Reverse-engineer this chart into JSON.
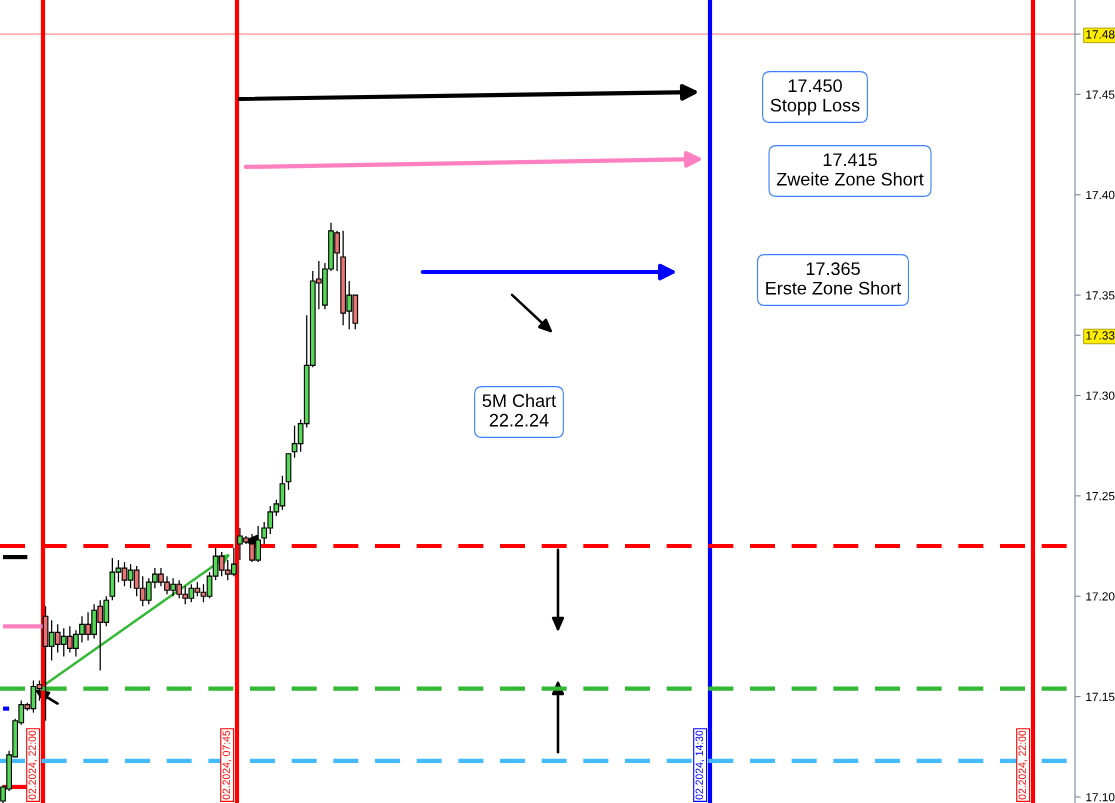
{
  "chart_data": {
    "type": "candlestick",
    "categories": [
      null,
      null,
      null,
      null,
      null,
      null,
      null,
      null,
      null,
      null,
      null,
      null,
      null,
      null,
      null,
      null,
      null,
      null,
      null,
      null,
      null,
      null,
      null,
      null,
      null,
      null,
      null,
      null,
      null,
      null,
      null,
      null,
      null,
      null,
      null,
      null,
      null,
      null,
      null,
      null,
      null,
      null,
      null,
      null,
      null,
      null,
      null,
      null,
      null,
      null,
      null,
      null,
      null,
      null,
      null,
      null,
      null,
      null,
      null,
      null,
      null,
      null,
      null,
      null,
      null,
      null,
      null,
      null,
      null,
      null,
      null,
      null,
      null,
      null,
      null,
      null,
      null,
      null,
      null,
      null,
      null,
      null,
      null,
      null,
      null,
      null,
      null,
      null,
      null,
      null,
      null,
      null,
      null,
      null,
      null,
      null,
      null,
      null,
      null,
      null,
      null,
      null,
      null,
      null,
      null,
      null,
      null,
      null,
      null,
      null,
      null,
      null,
      null,
      null,
      null,
      null,
      null,
      null,
      null,
      null,
      null,
      null,
      null,
      null,
      null,
      null,
      null,
      null,
      null,
      null,
      null,
      null,
      null,
      null,
      null,
      null,
      null,
      null,
      null,
      null,
      null,
      null,
      null,
      null,
      null,
      null,
      null,
      null,
      null,
      null,
      null,
      null,
      null,
      null,
      null,
      null,
      null,
      null,
      null,
      null,
      null,
      null,
      null,
      null,
      null,
      null,
      null,
      null,
      null,
      null,
      null,
      null,
      null,
      null,
      null,
      null,
      null
    ],
    "series": [
      {
        "type": "line",
        "color": "#000000",
        "values": [
          17.2195,
          17.2195,
          17.2195,
          17.2195,
          17.2195,
          null,
          null,
          null,
          null,
          null,
          null,
          null,
          null,
          null,
          null,
          null,
          null,
          null,
          null,
          null,
          null,
          null,
          null,
          null,
          null,
          null,
          null,
          null,
          null,
          null,
          null,
          null,
          null,
          null,
          null,
          null,
          null,
          null,
          null,
          null,
          null,
          null,
          null,
          null,
          null,
          null,
          null,
          null,
          null,
          null,
          null,
          null,
          null,
          null,
          null,
          null,
          null,
          null,
          null,
          null,
          null,
          null,
          null,
          null,
          null,
          null,
          null,
          null,
          null,
          null,
          null,
          null,
          null,
          null,
          null,
          null,
          null,
          null,
          null,
          null,
          null,
          null,
          null,
          null,
          null,
          null,
          null,
          null,
          null,
          null,
          null,
          null,
          null,
          null,
          null,
          null,
          null,
          null,
          null,
          null,
          null,
          null,
          null,
          null,
          null,
          null,
          null,
          null,
          null,
          null,
          null,
          null,
          null,
          null,
          null,
          null,
          null,
          null,
          null,
          null,
          null,
          null,
          null,
          null,
          null,
          null,
          null,
          null,
          null,
          null,
          null,
          null,
          null,
          null,
          null,
          null,
          null,
          null,
          null,
          null,
          null,
          null,
          null,
          null,
          null,
          null,
          null,
          null,
          null,
          null,
          null,
          null,
          null,
          null,
          null,
          null,
          null,
          null,
          null,
          null,
          null,
          null,
          null,
          null,
          null,
          null,
          null,
          null,
          null,
          null,
          null,
          null,
          null,
          null,
          null,
          null,
          null
        ]
      },
      {
        "type": "line",
        "color": "#ff80c0",
        "values": [
          17.185,
          17.185,
          17.185,
          17.185,
          17.185,
          17.185,
          17.185,
          17.185,
          null,
          null,
          null,
          null,
          null,
          null,
          null,
          null,
          null,
          null,
          null,
          null,
          null,
          null,
          null,
          null,
          null,
          null,
          null,
          null,
          null,
          null,
          null,
          null,
          null,
          null,
          null,
          null,
          null,
          null,
          null,
          null,
          null,
          null,
          null,
          null,
          null,
          null,
          null,
          null,
          null,
          null,
          null,
          null,
          null,
          null,
          null,
          null,
          null,
          null,
          null,
          null,
          null,
          null,
          null,
          null,
          null,
          null,
          null,
          null,
          null,
          null,
          null,
          null,
          null,
          null,
          null,
          null,
          null,
          null,
          null,
          null,
          null,
          null,
          null,
          null,
          null,
          null,
          null,
          null,
          null,
          null,
          null,
          null,
          null,
          null,
          null,
          null,
          null,
          null,
          null,
          null,
          null,
          null,
          null,
          null,
          null,
          null,
          null,
          null,
          null,
          null,
          null,
          null,
          null,
          null,
          null,
          null,
          null,
          null,
          null,
          null,
          null,
          null,
          null,
          null,
          null,
          null,
          null,
          null,
          null,
          null,
          null,
          null,
          null,
          null,
          null,
          null,
          null,
          null,
          null,
          null,
          null,
          null,
          null,
          null,
          null,
          null,
          null,
          null,
          null,
          null,
          null,
          null,
          null,
          null,
          null,
          null,
          null,
          null,
          null,
          null,
          null,
          null,
          null,
          null,
          null,
          null,
          null,
          null,
          null,
          null,
          null,
          null,
          null,
          null,
          null,
          null,
          null
        ]
      },
      {
        "type": "line",
        "color": "#0000ff",
        "values": [
          17.144,
          17.144,
          null,
          null,
          null,
          null,
          null,
          null,
          null,
          null,
          null,
          null,
          null,
          null,
          null,
          null,
          null,
          null,
          null,
          null,
          null,
          null,
          null,
          null,
          null,
          null,
          null,
          null,
          null,
          null,
          null,
          null,
          null,
          null,
          null,
          null,
          null,
          null,
          null,
          null,
          null,
          null,
          null,
          null,
          null,
          null,
          null,
          null,
          null,
          null,
          null,
          null,
          null,
          null,
          null,
          null,
          null,
          null,
          null,
          null,
          null,
          null,
          null,
          null,
          null,
          null,
          null,
          null,
          null,
          null,
          null,
          null,
          null,
          null,
          null,
          null,
          null,
          null,
          null,
          null,
          null,
          null,
          null,
          null,
          null,
          null,
          null,
          null,
          null,
          null,
          null,
          null,
          null,
          null,
          null,
          null,
          null,
          null,
          null,
          null,
          null,
          null,
          null,
          null,
          null,
          null,
          null,
          null,
          null,
          null,
          null,
          null,
          null,
          null,
          null,
          null,
          null,
          null,
          null,
          null,
          null,
          null,
          null,
          null,
          null,
          null,
          null,
          null,
          null,
          null,
          null,
          null,
          null,
          null,
          null,
          null,
          null,
          null,
          null,
          null,
          null,
          null,
          null,
          null,
          null,
          null,
          null,
          null,
          null,
          null,
          null,
          null,
          null,
          null,
          null,
          null,
          null,
          null,
          null,
          null,
          null,
          null,
          null,
          null,
          null,
          null,
          null,
          null,
          null,
          null,
          null,
          null,
          null,
          null,
          null,
          null,
          null
        ]
      },
      {
        "type": "line",
        "color": "#ff0000",
        "values": [
          17.105,
          17.105,
          17.105,
          17.105,
          17.105,
          null,
          null,
          null,
          null,
          null,
          null,
          null,
          null,
          null,
          null,
          null,
          null,
          null,
          null,
          null,
          null,
          null,
          null,
          null,
          null,
          null,
          null,
          null,
          null,
          null,
          null,
          null,
          null,
          null,
          null,
          null,
          null,
          null,
          null,
          null,
          null,
          null,
          null,
          null,
          null,
          null,
          null,
          null,
          null,
          null,
          null,
          null,
          null,
          null,
          null,
          null,
          null,
          null,
          null,
          null,
          null,
          null,
          null,
          null,
          null,
          null,
          null,
          null,
          null,
          null,
          null,
          null,
          null,
          null,
          null,
          null,
          null,
          null,
          null,
          null,
          null,
          null,
          null,
          null,
          null,
          null,
          null,
          null,
          null,
          null,
          null,
          null,
          null,
          null,
          null,
          null,
          null,
          null,
          null,
          null,
          null,
          null,
          null,
          null,
          null,
          null,
          null,
          null,
          null,
          null,
          null,
          null,
          null,
          null,
          null,
          null,
          null,
          null,
          null,
          null,
          null,
          null,
          null,
          null,
          null,
          null,
          null,
          null,
          null,
          null,
          null,
          null,
          null,
          null,
          null,
          null,
          null,
          null,
          null,
          null,
          null,
          null,
          null,
          null,
          null,
          null,
          null,
          null,
          null,
          null,
          null,
          null,
          null,
          null,
          null,
          null,
          null,
          null,
          null,
          null,
          null,
          null,
          null,
          null,
          null,
          null,
          null,
          null,
          null,
          null,
          null,
          null,
          null,
          null,
          null,
          null,
          null
        ]
      }
    ],
    "ohlc": [
      [
        17.098,
        17.106,
        17.097,
        17.105
      ],
      [
        17.104,
        17.123,
        17.103,
        17.121
      ],
      [
        17.12,
        17.139,
        17.12,
        17.138
      ],
      [
        17.137,
        17.148,
        17.136,
        17.146
      ],
      [
        17.146,
        17.147,
        17.143,
        17.144
      ],
      [
        17.144,
        17.158,
        17.142,
        17.155
      ],
      [
        17.156,
        17.158,
        17.148,
        17.154
      ],
      [
        17.19,
        17.195,
        17.138,
        17.175
      ],
      [
        17.175,
        17.188,
        17.168,
        17.182
      ],
      [
        17.182,
        17.186,
        17.172,
        17.176
      ],
      [
        17.176,
        17.184,
        17.17,
        17.18
      ],
      [
        17.18,
        17.185,
        17.172,
        17.174
      ],
      [
        17.174,
        17.183,
        17.17,
        17.181
      ],
      [
        17.181,
        17.19,
        17.177,
        17.186
      ],
      [
        17.186,
        17.192,
        17.178,
        17.181
      ],
      [
        17.181,
        17.196,
        17.179,
        17.193
      ],
      [
        17.195,
        17.198,
        17.163,
        17.187
      ],
      [
        17.187,
        17.2,
        17.185,
        17.198
      ],
      [
        17.2,
        17.219,
        17.198,
        17.212
      ],
      [
        17.212,
        17.218,
        17.207,
        17.214
      ],
      [
        17.214,
        17.217,
        17.205,
        17.208
      ],
      [
        17.208,
        17.216,
        17.204,
        17.213
      ],
      [
        17.213,
        17.215,
        17.2,
        17.204
      ],
      [
        17.204,
        17.21,
        17.195,
        17.198
      ],
      [
        17.198,
        17.209,
        17.196,
        17.207
      ],
      [
        17.207,
        17.214,
        17.204,
        17.211
      ],
      [
        17.211,
        17.214,
        17.205,
        17.207
      ],
      [
        17.207,
        17.21,
        17.201,
        17.203
      ],
      [
        17.203,
        17.209,
        17.2,
        17.206
      ],
      [
        17.206,
        17.208,
        17.199,
        17.201
      ],
      [
        17.201,
        17.205,
        17.196,
        17.199
      ],
      [
        17.199,
        17.206,
        17.197,
        17.204
      ],
      [
        17.204,
        17.207,
        17.2,
        17.202
      ],
      [
        17.202,
        17.206,
        17.197,
        17.2
      ],
      [
        17.2,
        17.212,
        17.199,
        17.21
      ],
      [
        17.21,
        17.224,
        17.208,
        17.22
      ],
      [
        17.22,
        17.222,
        17.21,
        17.213
      ],
      [
        17.213,
        17.218,
        17.208,
        17.211
      ],
      [
        17.211,
        17.224,
        17.21,
        17.216
      ],
      [
        17.226,
        17.234,
        17.218,
        17.23
      ],
      [
        17.229,
        17.23,
        17.226,
        17.227
      ],
      [
        17.226,
        17.231,
        17.217,
        17.218
      ],
      [
        17.218,
        17.235,
        17.217,
        17.228
      ],
      [
        17.229,
        17.237,
        17.226,
        17.234
      ],
      [
        17.234,
        17.245,
        17.231,
        17.242
      ],
      [
        17.242,
        17.248,
        17.24,
        17.246
      ],
      [
        17.245,
        17.26,
        17.243,
        17.256
      ],
      [
        17.257,
        17.271,
        17.253,
        17.271
      ],
      [
        17.272,
        17.285,
        17.269,
        17.276
      ],
      [
        17.276,
        17.288,
        17.272,
        17.286
      ],
      [
        17.286,
        17.34,
        17.284,
        17.315
      ],
      [
        17.315,
        17.362,
        17.314,
        17.357
      ],
      [
        17.358,
        17.367,
        17.343,
        17.356
      ],
      [
        17.345,
        17.366,
        17.343,
        17.363
      ],
      [
        17.363,
        17.386,
        17.362,
        17.382
      ],
      [
        17.381,
        17.382,
        17.362,
        17.371
      ],
      [
        17.369,
        17.382,
        17.335,
        17.341
      ],
      [
        17.342,
        17.357,
        17.333,
        17.35
      ],
      [
        17.35,
        17.35,
        17.333,
        17.336
      ],
      null,
      null,
      null,
      null,
      null,
      null,
      null,
      null,
      null,
      null,
      null,
      null,
      null,
      null,
      null,
      null,
      null,
      null,
      null,
      null,
      null,
      null,
      null,
      null,
      null,
      null,
      null,
      null,
      null,
      null,
      null,
      null,
      null,
      null,
      null,
      null,
      null,
      null,
      null,
      null,
      null,
      null,
      null,
      null,
      null,
      null,
      null,
      null,
      null,
      null,
      null,
      null,
      null,
      null,
      null,
      null,
      null,
      null,
      null,
      null,
      null,
      null,
      null,
      null,
      null,
      null,
      null,
      null,
      null,
      null,
      null,
      null,
      null,
      null,
      null,
      null,
      null,
      null,
      null,
      null,
      null,
      null,
      null,
      null,
      null,
      null,
      null,
      null,
      null,
      null,
      null,
      null,
      null,
      null,
      null,
      null,
      null,
      null,
      null,
      null,
      null,
      null,
      null,
      null,
      null,
      null,
      null,
      null,
      null,
      null,
      null,
      null,
      null,
      null,
      null,
      null,
      null,
      null
    ],
    "ylim": [
      17.097,
      17.497
    ],
    "yticks": [
      {
        "value": 17.1,
        "label": "17.10"
      },
      {
        "value": 17.15,
        "label": "17.15"
      },
      {
        "value": 17.2,
        "label": "17.20"
      },
      {
        "value": 17.25,
        "label": "17.25"
      },
      {
        "value": 17.3,
        "label": "17.30"
      },
      {
        "value": 17.35,
        "label": "17.35"
      },
      {
        "value": 17.4,
        "label": "17.40"
      },
      {
        "value": 17.45,
        "label": "17.45"
      },
      17.48,
      17.33
    ],
    "ref_lines": [
      {
        "axis": "y",
        "value": 17.48,
        "color": "#ff9090"
      },
      {
        "axis": "y",
        "value": 17.225,
        "color": "#ff0000",
        "line_style": "dashed"
      },
      {
        "axis": "y",
        "value": 17.154,
        "color": "#33b833",
        "line_style": "dashed"
      },
      {
        "axis": "y",
        "value": 17.118,
        "color": "#44bbff",
        "line_style": "dashed"
      }
    ],
    "annotations": [
      "17.450\nStopp Loss",
      "17.415\nZweite Zone Short",
      "17.365\nErste Zone Short",
      "5M Chart\n22.2.24",
      "02.2024, 22:00",
      "02.2024, 07:45",
      "02.2024, 14:30",
      "02.2024, 22:00"
    ],
    "grid": false,
    "legend": false
  }
}
